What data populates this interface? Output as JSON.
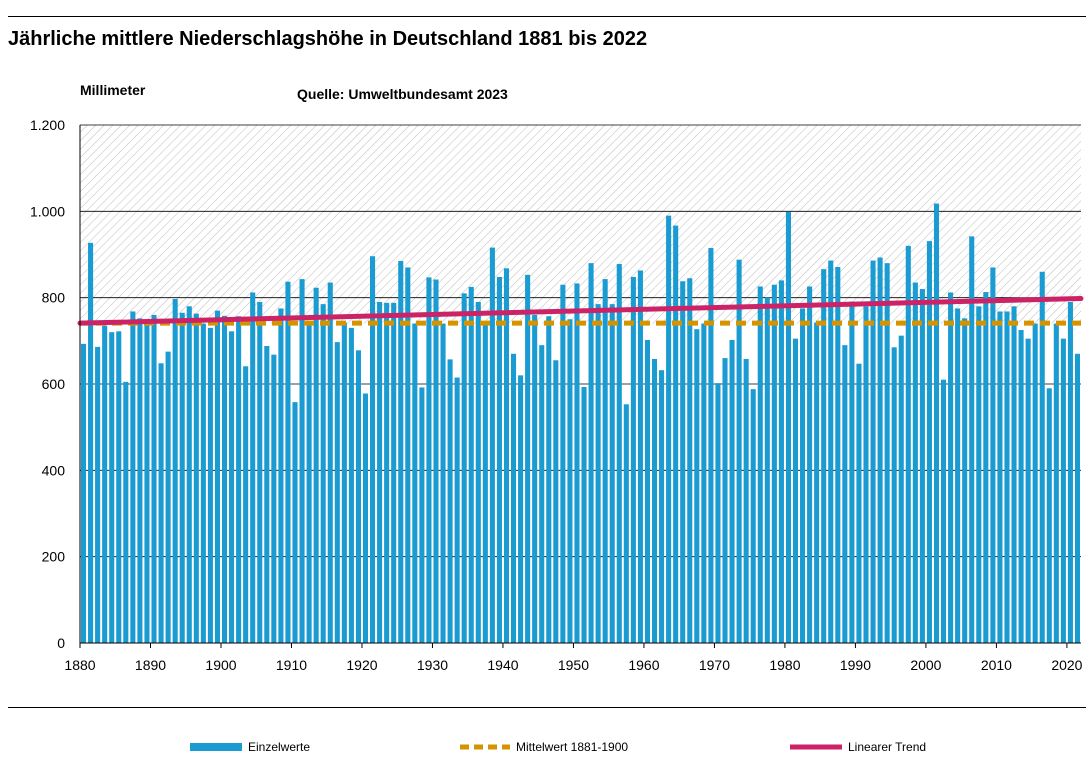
{
  "header": {
    "title": "Jährliche mittlere Niederschlagshöhe in Deutschland 1881 bis 2022",
    "unit_label": "Millimeter",
    "source": "Quelle: Umweltbundesamt 2023"
  },
  "colors": {
    "bars": "#1a9bd1",
    "mean_line": "#d69300",
    "trend_line": "#cc2366",
    "grid": "#000000",
    "hatch": "#bcbcbc"
  },
  "chart_data": {
    "type": "bar",
    "title": "Jährliche mittlere Niederschlagshöhe in Deutschland 1881 bis 2022",
    "ylabel": "Millimeter",
    "xlabel": "",
    "ylim": [
      0,
      1200
    ],
    "xlim": [
      1880,
      2022
    ],
    "yticks": [
      0,
      200,
      400,
      600,
      800,
      1000,
      1200
    ],
    "ytick_labels": [
      "0",
      "200",
      "400",
      "600",
      "800",
      "1.000",
      "1.200"
    ],
    "xticks": [
      1880,
      1890,
      1900,
      1910,
      1920,
      1930,
      1940,
      1950,
      1960,
      1970,
      1980,
      1990,
      2000,
      2010,
      2020
    ],
    "grid": true,
    "legend_position": "bottom",
    "categories": [
      1881,
      1882,
      1883,
      1884,
      1885,
      1886,
      1887,
      1888,
      1889,
      1890,
      1891,
      1892,
      1893,
      1894,
      1895,
      1896,
      1897,
      1898,
      1899,
      1900,
      1901,
      1902,
      1903,
      1904,
      1905,
      1906,
      1907,
      1908,
      1909,
      1910,
      1911,
      1912,
      1913,
      1914,
      1915,
      1916,
      1917,
      1918,
      1919,
      1920,
      1921,
      1922,
      1923,
      1924,
      1925,
      1926,
      1927,
      1928,
      1929,
      1930,
      1931,
      1932,
      1933,
      1934,
      1935,
      1936,
      1937,
      1938,
      1939,
      1940,
      1941,
      1942,
      1943,
      1944,
      1945,
      1946,
      1947,
      1948,
      1949,
      1950,
      1951,
      1952,
      1953,
      1954,
      1955,
      1956,
      1957,
      1958,
      1959,
      1960,
      1961,
      1962,
      1963,
      1964,
      1965,
      1966,
      1967,
      1968,
      1969,
      1970,
      1971,
      1972,
      1973,
      1974,
      1975,
      1976,
      1977,
      1978,
      1979,
      1980,
      1981,
      1982,
      1983,
      1984,
      1985,
      1986,
      1987,
      1988,
      1989,
      1990,
      1991,
      1992,
      1993,
      1994,
      1995,
      1996,
      1997,
      1998,
      1999,
      2000,
      2001,
      2002,
      2003,
      2004,
      2005,
      2006,
      2007,
      2008,
      2009,
      2010,
      2011,
      2012,
      2013,
      2014,
      2015,
      2016,
      2017,
      2018,
      2019,
      2020,
      2021,
      2022
    ],
    "series": [
      {
        "name": "Einzelwerte",
        "type": "bar",
        "values": [
          693,
          927,
          686,
          735,
          720,
          722,
          605,
          768,
          752,
          740,
          760,
          648,
          675,
          797,
          765,
          780,
          763,
          740,
          730,
          770,
          758,
          722,
          757,
          641,
          812,
          790,
          688,
          668,
          775,
          837,
          558,
          843,
          740,
          823,
          785,
          835,
          697,
          742,
          730,
          678,
          578,
          896,
          790,
          788,
          788,
          885,
          870,
          740,
          592,
          847,
          842,
          740,
          657,
          615,
          810,
          825,
          790,
          740,
          916,
          848,
          868,
          670,
          620,
          853,
          760,
          690,
          757,
          655,
          830,
          750,
          833,
          593,
          880,
          785,
          843,
          785,
          878,
          553,
          848,
          863,
          702,
          658,
          632,
          990,
          967,
          838,
          845,
          727,
          740,
          915,
          602,
          660,
          702,
          888,
          658,
          588,
          826,
          800,
          830,
          840,
          999,
          705,
          775,
          826,
          742,
          866,
          886,
          871,
          690,
          791,
          647,
          780,
          886,
          893,
          880,
          685,
          712,
          920,
          835,
          820,
          931,
          1018,
          610,
          812,
          775,
          752,
          942,
          780,
          813,
          870,
          768,
          768,
          780,
          725,
          705,
          740,
          860,
          590,
          740,
          705,
          790,
          670
        ]
      },
      {
        "name": "Mittelwert 1881-1900",
        "type": "line",
        "style": "dashed",
        "value": 741
      },
      {
        "name": "Linearer Trend",
        "type": "line",
        "x": [
          1880,
          2022
        ],
        "values": [
          741,
          798
        ]
      }
    ]
  },
  "legend": {
    "bars": "Einzelwerte",
    "mean": "Mittelwert 1881-1900",
    "trend": "Linearer Trend"
  }
}
